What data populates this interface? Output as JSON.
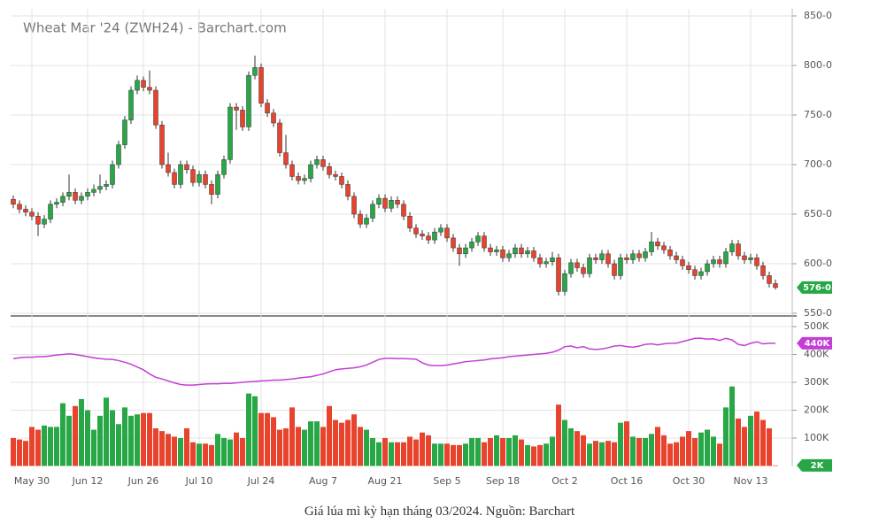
{
  "chart_data": {
    "type": "candlestick",
    "title": "Wheat Mar '24 (ZWH24) - Barchart.com",
    "caption": "Giá lúa mì kỳ hạn tháng 03/2024. Nguồn: Barchart",
    "categories": [
      null,
      null,
      null,
      "May 30",
      null,
      null,
      null,
      null,
      null,
      null,
      null,
      null,
      "Jun 12",
      null,
      null,
      null,
      null,
      null,
      null,
      null,
      null,
      "Jun 26",
      null,
      null,
      null,
      null,
      null,
      null,
      null,
      null,
      "Jul 10",
      null,
      null,
      null,
      null,
      null,
      null,
      null,
      null,
      null,
      "Jul 24",
      null,
      null,
      null,
      null,
      null,
      null,
      null,
      null,
      null,
      "Aug 7",
      null,
      null,
      null,
      null,
      null,
      null,
      null,
      null,
      null,
      "Aug 21",
      null,
      null,
      null,
      null,
      null,
      null,
      null,
      null,
      null,
      "Sep 5",
      null,
      null,
      null,
      null,
      null,
      null,
      null,
      null,
      "Sep 18",
      null,
      null,
      null,
      null,
      null,
      null,
      null,
      null,
      null,
      "Oct 2",
      null,
      null,
      null,
      null,
      null,
      null,
      null,
      null,
      null,
      "Oct 16",
      null,
      null,
      null,
      null,
      null,
      null,
      null,
      null,
      null,
      "Oct 30",
      null,
      null,
      null,
      null,
      null,
      null,
      null,
      null,
      null,
      "Nov 13",
      null,
      null,
      null,
      null
    ],
    "open": [
      665,
      660,
      655,
      652,
      648,
      640,
      645,
      660,
      662,
      668,
      672,
      664,
      668,
      672,
      675,
      678,
      680,
      700,
      720,
      745,
      775,
      785,
      778,
      775,
      740,
      700,
      692,
      680,
      700,
      695,
      682,
      690,
      680,
      670,
      690,
      705,
      758,
      755,
      738,
      790,
      798,
      762,
      752,
      742,
      712,
      700,
      688,
      684,
      686,
      700,
      705,
      698,
      690,
      688,
      680,
      668,
      650,
      640,
      646,
      660,
      666,
      656,
      664,
      660,
      648,
      636,
      630,
      628,
      624,
      632,
      636,
      626,
      616,
      610,
      616,
      622,
      628,
      616,
      612,
      614,
      606,
      610,
      616,
      610,
      613,
      606,
      600,
      602,
      606,
      572,
      590,
      601,
      596,
      590,
      606,
      604,
      610,
      600,
      588,
      606,
      604,
      610,
      606,
      612,
      622,
      618,
      614,
      608,
      604,
      598,
      594,
      588,
      592,
      600,
      604,
      600,
      612,
      620,
      608,
      604,
      606,
      598,
      588,
      580
    ],
    "high": [
      669,
      664,
      659,
      656,
      652,
      649,
      664,
      666,
      672,
      690,
      676,
      672,
      676,
      680,
      690,
      684,
      704,
      724,
      749,
      779,
      790,
      789,
      795,
      779,
      744,
      712,
      696,
      704,
      704,
      699,
      694,
      694,
      684,
      694,
      709,
      762,
      762,
      759,
      794,
      810,
      802,
      766,
      756,
      746,
      730,
      704,
      692,
      690,
      704,
      709,
      709,
      702,
      694,
      692,
      684,
      672,
      654,
      650,
      664,
      670,
      670,
      668,
      668,
      664,
      652,
      640,
      634,
      632,
      636,
      640,
      640,
      630,
      620,
      620,
      626,
      632,
      632,
      620,
      618,
      618,
      614,
      620,
      620,
      617,
      617,
      610,
      606,
      612,
      610,
      594,
      605,
      605,
      600,
      610,
      610,
      614,
      614,
      604,
      610,
      610,
      614,
      614,
      616,
      632,
      626,
      622,
      618,
      612,
      608,
      602,
      598,
      596,
      604,
      608,
      608,
      616,
      624,
      624,
      612,
      610,
      610,
      602,
      592,
      584
    ],
    "low": [
      656,
      651,
      648,
      644,
      628,
      636,
      641,
      656,
      658,
      664,
      660,
      660,
      664,
      668,
      671,
      674,
      676,
      696,
      716,
      741,
      771,
      774,
      771,
      736,
      696,
      688,
      676,
      676,
      691,
      678,
      678,
      676,
      660,
      666,
      686,
      701,
      735,
      734,
      734,
      786,
      758,
      748,
      738,
      708,
      696,
      684,
      680,
      680,
      682,
      696,
      694,
      686,
      684,
      676,
      664,
      646,
      636,
      636,
      642,
      656,
      652,
      652,
      656,
      644,
      632,
      626,
      624,
      620,
      620,
      628,
      622,
      612,
      598,
      606,
      612,
      618,
      612,
      608,
      608,
      602,
      602,
      606,
      606,
      606,
      602,
      596,
      596,
      598,
      568,
      568,
      586,
      592,
      586,
      586,
      600,
      600,
      596,
      584,
      584,
      600,
      600,
      602,
      602,
      608,
      614,
      610,
      604,
      600,
      594,
      590,
      584,
      584,
      588,
      596,
      596,
      596,
      608,
      604,
      600,
      600,
      594,
      584,
      576,
      574
    ],
    "close": [
      660,
      655,
      652,
      648,
      640,
      645,
      660,
      662,
      668,
      672,
      664,
      668,
      672,
      675,
      678,
      680,
      700,
      720,
      745,
      775,
      785,
      778,
      775,
      740,
      700,
      692,
      680,
      700,
      695,
      682,
      690,
      680,
      670,
      690,
      705,
      758,
      755,
      738,
      790,
      798,
      762,
      752,
      742,
      712,
      700,
      688,
      684,
      686,
      700,
      705,
      698,
      690,
      688,
      680,
      668,
      650,
      640,
      646,
      660,
      666,
      656,
      664,
      660,
      648,
      636,
      630,
      628,
      624,
      632,
      636,
      626,
      616,
      610,
      616,
      622,
      628,
      616,
      612,
      614,
      606,
      610,
      616,
      610,
      613,
      606,
      600,
      602,
      606,
      572,
      590,
      601,
      596,
      590,
      606,
      604,
      610,
      600,
      588,
      606,
      604,
      610,
      606,
      612,
      622,
      618,
      614,
      608,
      604,
      598,
      594,
      588,
      592,
      600,
      604,
      600,
      612,
      620,
      608,
      604,
      606,
      598,
      588,
      580,
      576
    ],
    "close_label": "576-0",
    "volume": [
      100000,
      95000,
      90000,
      140000,
      130000,
      145000,
      140000,
      140000,
      225000,
      180000,
      215000,
      240000,
      200000,
      130000,
      180000,
      245000,
      200000,
      150000,
      210000,
      180000,
      185000,
      190000,
      190000,
      135000,
      125000,
      115000,
      105000,
      100000,
      135000,
      85000,
      80000,
      80000,
      75000,
      115000,
      100000,
      95000,
      120000,
      100000,
      260000,
      250000,
      190000,
      190000,
      175000,
      130000,
      135000,
      210000,
      140000,
      130000,
      160000,
      160000,
      140000,
      215000,
      165000,
      155000,
      165000,
      185000,
      140000,
      130000,
      100000,
      85000,
      100000,
      85000,
      85000,
      85000,
      105000,
      95000,
      120000,
      110000,
      80000,
      80000,
      80000,
      75000,
      75000,
      80000,
      100000,
      100000,
      85000,
      100000,
      110000,
      100000,
      100000,
      110000,
      95000,
      75000,
      70000,
      75000,
      80000,
      105000,
      220000,
      165000,
      135000,
      125000,
      110000,
      80000,
      90000,
      85000,
      90000,
      85000,
      155000,
      160000,
      105000,
      100000,
      100000,
      115000,
      140000,
      110000,
      80000,
      85000,
      105000,
      125000,
      100000,
      120000,
      130000,
      105000,
      80000,
      210000,
      285000,
      170000,
      140000,
      180000,
      195000,
      165000,
      135000,
      2000
    ],
    "volume_label": "2K",
    "open_interest": [
      385000,
      388000,
      390000,
      390000,
      392000,
      392000,
      395000,
      398000,
      400000,
      402000,
      400000,
      396000,
      392000,
      388000,
      385000,
      383000,
      382000,
      378000,
      372000,
      365000,
      355000,
      345000,
      330000,
      318000,
      312000,
      305000,
      298000,
      292000,
      290000,
      290000,
      292000,
      294000,
      295000,
      295000,
      296000,
      296000,
      298000,
      300000,
      302000,
      303000,
      305000,
      306000,
      308000,
      308000,
      310000,
      312000,
      315000,
      318000,
      320000,
      325000,
      330000,
      338000,
      345000,
      348000,
      350000,
      352000,
      356000,
      362000,
      372000,
      382000,
      386000,
      386000,
      385000,
      385000,
      384000,
      383000,
      370000,
      362000,
      360000,
      360000,
      362000,
      366000,
      370000,
      374000,
      376000,
      378000,
      380000,
      384000,
      386000,
      388000,
      392000,
      394000,
      396000,
      398000,
      400000,
      402000,
      404000,
      408000,
      415000,
      428000,
      430000,
      424000,
      428000,
      420000,
      418000,
      420000,
      424000,
      430000,
      432000,
      428000,
      426000,
      430000,
      436000,
      438000,
      434000,
      438000,
      440000,
      440000,
      446000,
      452000,
      458000,
      458000,
      455000,
      456000,
      450000,
      458000,
      452000,
      436000,
      432000,
      440000,
      445000,
      438000,
      440000,
      440000
    ],
    "open_interest_label": "440K",
    "up_color": "#27a745",
    "down_color": "#e8432d",
    "open_interest_color": "#c43ed6",
    "ylim": [
      550,
      850
    ],
    "yticks": [
      {
        "value": 550,
        "label": "550-0"
      },
      {
        "value": 600,
        "label": "600-0"
      },
      {
        "value": 650,
        "label": "650-0"
      },
      {
        "value": 700,
        "label": "700-0"
      },
      {
        "value": 750,
        "label": "750-0"
      },
      {
        "value": 800,
        "label": "800-0"
      },
      {
        "value": 850,
        "label": "850-0"
      }
    ],
    "y2lim": [
      0,
      500000
    ],
    "y2ticks": [
      {
        "value": 100000,
        "label": "100K"
      },
      {
        "value": 200000,
        "label": "200K"
      },
      {
        "value": 300000,
        "label": "300K"
      },
      {
        "value": 400000,
        "label": "400K"
      },
      {
        "value": 500000,
        "label": "500K"
      }
    ],
    "grid": true
  }
}
